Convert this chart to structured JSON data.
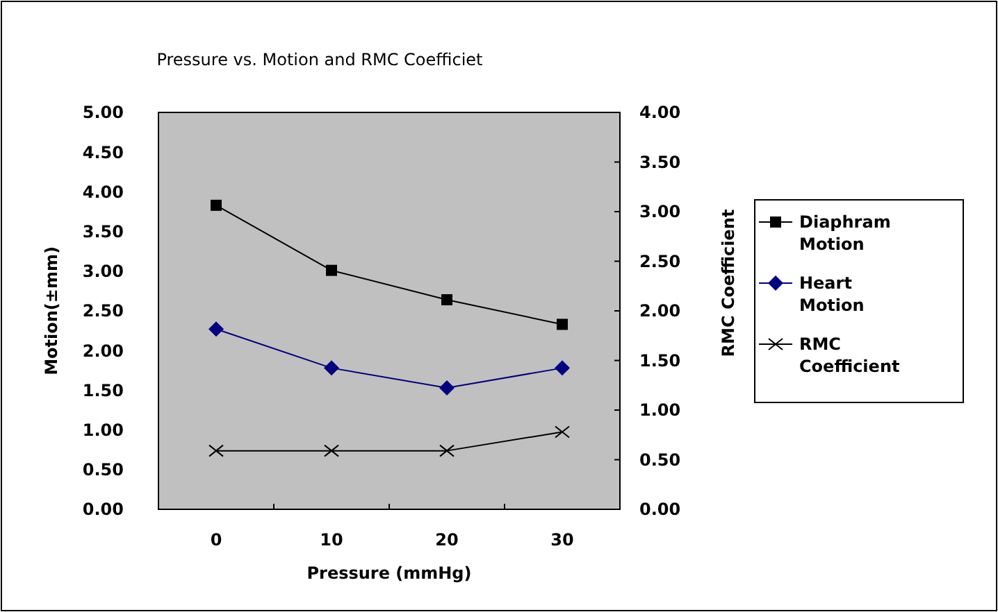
{
  "chart_data": {
    "type": "line",
    "title": "Pressure vs. Motion and RMC Coefficiet",
    "xlabel": "Pressure (mmHg)",
    "ylabel": "Motion(±mm)",
    "y2label": "RMC Coefficient",
    "categories": [
      "0",
      "10",
      "20",
      "30"
    ],
    "series": [
      {
        "name": "Diaphram Motion",
        "color": "#000000",
        "marker": "square",
        "values": [
          3.83,
          3.01,
          2.64,
          2.33
        ]
      },
      {
        "name": "Heart Motion",
        "color": "#000080",
        "marker": "diamond",
        "values": [
          2.27,
          1.78,
          1.53,
          1.78
        ]
      },
      {
        "name": "RMC Coefficient",
        "color": "#000000",
        "marker": "cross",
        "axis": "y2",
        "values": [
          0.59,
          0.59,
          0.59,
          0.78
        ]
      }
    ],
    "ylim": [
      0,
      5
    ],
    "yticks": [
      {
        "value": 0,
        "label": "0.00"
      },
      {
        "value": 0.5,
        "label": "0.50"
      },
      {
        "value": 1,
        "label": "1.00"
      },
      {
        "value": 1.5,
        "label": "1.50"
      },
      {
        "value": 2,
        "label": "2.00"
      },
      {
        "value": 2.5,
        "label": "2.50"
      },
      {
        "value": 3,
        "label": "3.00"
      },
      {
        "value": 3.5,
        "label": "3.50"
      },
      {
        "value": 4,
        "label": "4.00"
      },
      {
        "value": 4.5,
        "label": "4.50"
      },
      {
        "value": 5,
        "label": "5.00"
      }
    ],
    "y2lim": [
      0,
      4
    ],
    "y2ticks": [
      {
        "value": 0,
        "label": "0.00"
      },
      {
        "value": 0.5,
        "label": "0.50"
      },
      {
        "value": 1,
        "label": "1.00"
      },
      {
        "value": 1.5,
        "label": "1.50"
      },
      {
        "value": 2,
        "label": "2.00"
      },
      {
        "value": 2.5,
        "label": "2.50"
      },
      {
        "value": 3,
        "label": "3.00"
      },
      {
        "value": 3.5,
        "label": "3.50"
      },
      {
        "value": 4,
        "label": "4.00"
      }
    ],
    "grid": false,
    "legend": "right",
    "line_style": "solid"
  }
}
